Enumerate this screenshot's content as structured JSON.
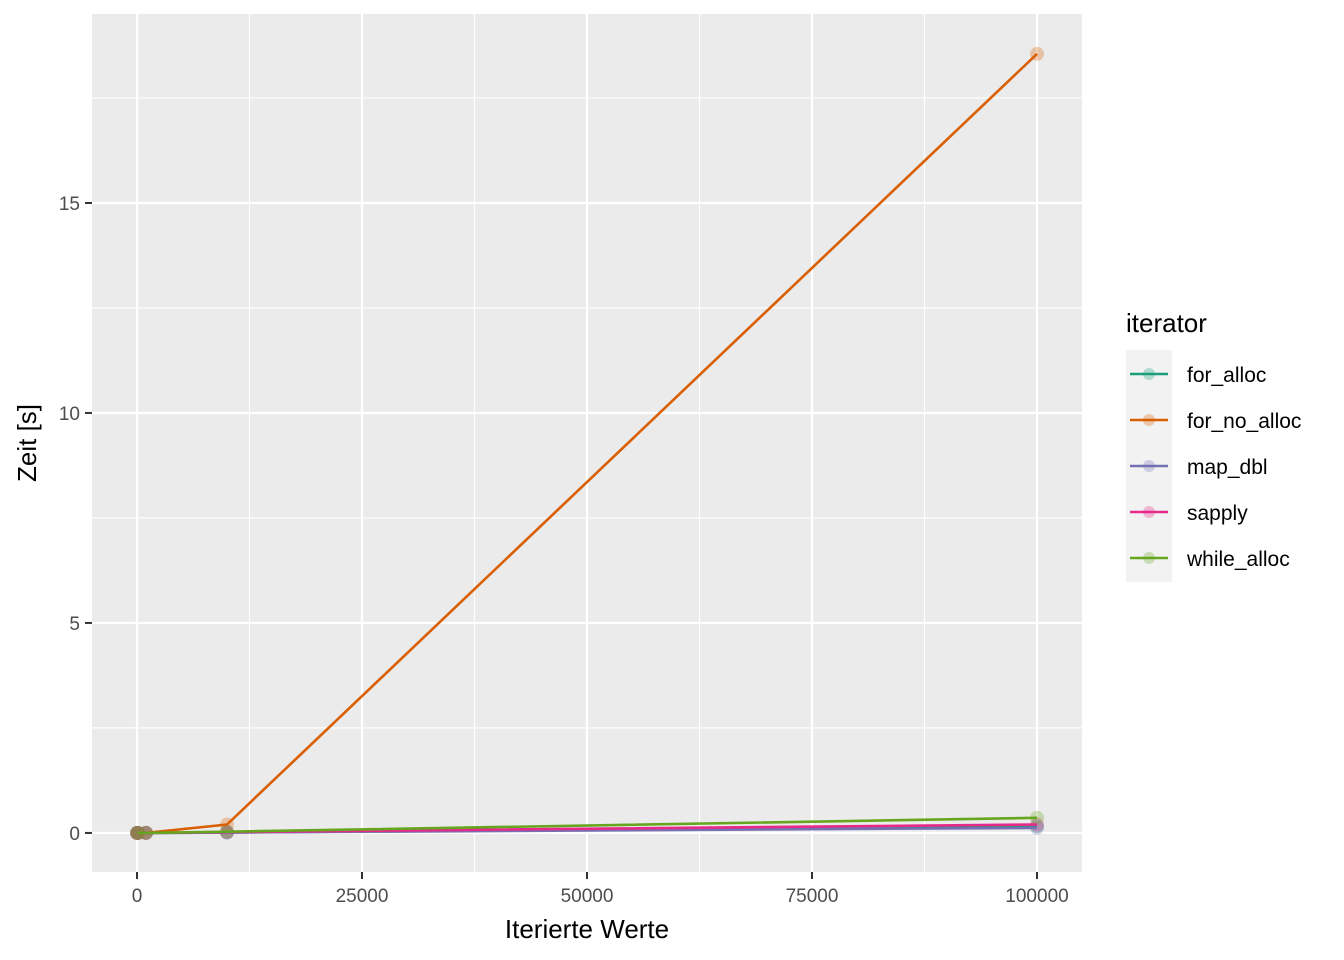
{
  "chart_data": {
    "type": "line",
    "xlabel": "Iterierte Werte",
    "ylabel": "Zeit [s]",
    "xlim": [
      -5000,
      105000
    ],
    "ylim": [
      -0.93,
      19.5
    ],
    "x_ticks": [
      0,
      25000,
      50000,
      75000,
      100000
    ],
    "y_ticks": [
      0,
      5,
      10,
      15
    ],
    "x_tick_labels": [
      "0",
      "25000",
      "50000",
      "75000",
      "100000"
    ],
    "y_tick_labels": [
      "0",
      "5",
      "10",
      "15"
    ],
    "x_minor": [
      12500,
      37500,
      62500,
      87500
    ],
    "y_minor": [
      2.5,
      7.5,
      12.5,
      17.5
    ],
    "grid": true,
    "legend": {
      "title": "iterator",
      "placement": "right"
    },
    "series": [
      {
        "name": "for_alloc",
        "color": "#1B9E77",
        "x": [
          10,
          100,
          1000,
          10000,
          100000
        ],
        "y": [
          0.0,
          0.0,
          0.001,
          0.01,
          0.16
        ]
      },
      {
        "name": "for_no_alloc",
        "color": "#D95F02",
        "x": [
          10,
          100,
          1000,
          10000,
          100000
        ],
        "y": [
          0.0,
          0.0,
          0.002,
          0.2,
          18.55
        ]
      },
      {
        "name": "map_dbl",
        "color": "#7570B3",
        "x": [
          10,
          100,
          1000,
          10000,
          100000
        ],
        "y": [
          0.0,
          0.0,
          0.001,
          0.01,
          0.12
        ]
      },
      {
        "name": "sapply",
        "color": "#E7298A",
        "x": [
          10,
          100,
          1000,
          10000,
          100000
        ],
        "y": [
          0.0,
          0.0,
          0.001,
          0.02,
          0.2
        ]
      },
      {
        "name": "while_alloc",
        "color": "#66A61E",
        "x": [
          10,
          100,
          1000,
          10000,
          100000
        ],
        "y": [
          0.0,
          0.0,
          0.001,
          0.03,
          0.36
        ]
      }
    ]
  }
}
